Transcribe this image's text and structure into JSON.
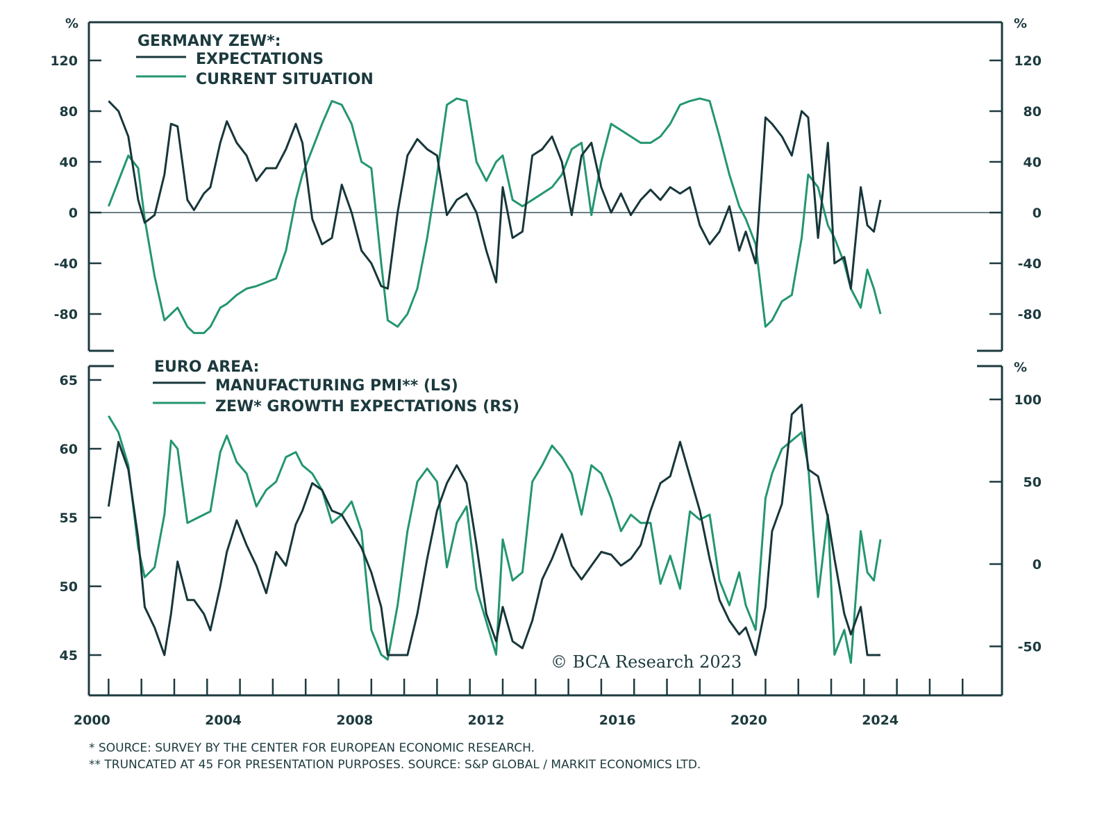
{
  "colors": {
    "dark": "#17363a",
    "green": "#23966f",
    "axis": "#1c3a3e"
  },
  "chart_data": [
    {
      "type": "line",
      "title": "GERMANY ZEW*:",
      "ylabel_left": "%",
      "ylabel_right": "%",
      "ylim": [
        -100,
        140
      ],
      "yticks": [
        -80,
        -40,
        0,
        40,
        80,
        120
      ],
      "ytick_labels": [
        "-80",
        "-40",
        "0",
        "40",
        "80",
        "120"
      ],
      "legend": [
        "EXPECTATIONS",
        "CURRENT SITUATION"
      ],
      "legend_position": "top-left",
      "zero_line": true,
      "series": [
        {
          "name": "EXPECTATIONS",
          "color": "dark",
          "x": [
            2000.0,
            2000.3,
            2000.6,
            2000.9,
            2001.1,
            2001.4,
            2001.7,
            2001.9,
            2002.1,
            2002.4,
            2002.6,
            2002.9,
            2003.1,
            2003.4,
            2003.6,
            2003.9,
            2004.2,
            2004.5,
            2004.8,
            2005.1,
            2005.4,
            2005.7,
            2005.9,
            2006.2,
            2006.5,
            2006.8,
            2007.1,
            2007.4,
            2007.7,
            2008.0,
            2008.3,
            2008.5,
            2008.8,
            2009.1,
            2009.4,
            2009.7,
            2010.0,
            2010.3,
            2010.6,
            2010.9,
            2011.2,
            2011.5,
            2011.8,
            2012.0,
            2012.3,
            2012.6,
            2012.9,
            2013.2,
            2013.5,
            2013.8,
            2014.1,
            2014.4,
            2014.7,
            2015.0,
            2015.3,
            2015.6,
            2015.9,
            2016.2,
            2016.5,
            2016.8,
            2017.1,
            2017.4,
            2017.7,
            2018.0,
            2018.3,
            2018.6,
            2018.9,
            2019.2,
            2019.4,
            2019.7,
            2020.0,
            2020.2,
            2020.5,
            2020.8,
            2021.1,
            2021.3,
            2021.6,
            2021.9,
            2022.1,
            2022.4,
            2022.6,
            2022.9,
            2023.1,
            2023.3,
            2023.5
          ],
          "y": [
            88,
            80,
            60,
            10,
            -8,
            -2,
            30,
            70,
            68,
            10,
            2,
            15,
            20,
            55,
            72,
            55,
            45,
            25,
            35,
            35,
            50,
            70,
            55,
            -5,
            -25,
            -20,
            22,
            0,
            -30,
            -40,
            -58,
            -60,
            0,
            45,
            58,
            50,
            45,
            -2,
            10,
            15,
            0,
            -30,
            -55,
            20,
            -20,
            -15,
            45,
            50,
            60,
            40,
            -2,
            45,
            55,
            20,
            0,
            15,
            -2,
            10,
            18,
            10,
            20,
            15,
            20,
            -10,
            -25,
            -15,
            5,
            -30,
            -15,
            -40,
            75,
            70,
            60,
            45,
            80,
            75,
            -20,
            55,
            -40,
            -35,
            -60,
            20,
            -10,
            -15,
            10
          ]
        },
        {
          "name": "CURRENT SITUATION",
          "color": "green",
          "x": [
            2000.0,
            2000.3,
            2000.6,
            2000.9,
            2001.1,
            2001.4,
            2001.7,
            2001.9,
            2002.1,
            2002.4,
            2002.6,
            2002.9,
            2003.1,
            2003.4,
            2003.6,
            2003.9,
            2004.2,
            2004.5,
            2004.8,
            2005.1,
            2005.4,
            2005.7,
            2005.9,
            2006.2,
            2006.5,
            2006.8,
            2007.1,
            2007.4,
            2007.7,
            2008.0,
            2008.3,
            2008.5,
            2008.8,
            2009.1,
            2009.4,
            2009.7,
            2010.0,
            2010.3,
            2010.6,
            2010.9,
            2011.2,
            2011.5,
            2011.8,
            2012.0,
            2012.3,
            2012.6,
            2012.9,
            2013.2,
            2013.5,
            2013.8,
            2014.1,
            2014.4,
            2014.7,
            2015.0,
            2015.3,
            2015.6,
            2015.9,
            2016.2,
            2016.5,
            2016.8,
            2017.1,
            2017.4,
            2017.7,
            2018.0,
            2018.3,
            2018.6,
            2018.9,
            2019.2,
            2019.4,
            2019.7,
            2020.0,
            2020.2,
            2020.5,
            2020.8,
            2021.1,
            2021.3,
            2021.6,
            2021.9,
            2022.1,
            2022.4,
            2022.6,
            2022.9,
            2023.1,
            2023.3,
            2023.5
          ],
          "y": [
            5,
            25,
            45,
            35,
            -5,
            -50,
            -85,
            -80,
            -75,
            -90,
            -95,
            -95,
            -90,
            -75,
            -72,
            -65,
            -60,
            -58,
            -55,
            -52,
            -30,
            10,
            30,
            50,
            70,
            88,
            85,
            70,
            40,
            35,
            -40,
            -85,
            -90,
            -80,
            -60,
            -20,
            30,
            85,
            90,
            88,
            40,
            25,
            40,
            45,
            10,
            5,
            10,
            15,
            20,
            30,
            50,
            55,
            -2,
            40,
            70,
            65,
            60,
            55,
            55,
            60,
            70,
            85,
            88,
            90,
            88,
            60,
            30,
            5,
            -5,
            -25,
            -90,
            -85,
            -70,
            -65,
            -20,
            30,
            20,
            -10,
            -20,
            -40,
            -60,
            -75,
            -45,
            -60,
            -80
          ]
        }
      ]
    },
    {
      "type": "line",
      "title": "EURO AREA:",
      "ylabel_right": "%",
      "ylim_left": [
        42,
        66
      ],
      "yticks_left": [
        45,
        50,
        55,
        60,
        65
      ],
      "ytick_labels_left": [
        "45",
        "50",
        "55",
        "60",
        "65"
      ],
      "ylim_right": [
        -80,
        120
      ],
      "yticks_right": [
        -50,
        0,
        50,
        100
      ],
      "ytick_labels_right": [
        "-50",
        "0",
        "50",
        "100"
      ],
      "legend": [
        "MANUFACTURING PMI** (LS)",
        "ZEW* GROWTH EXPECTATIONS (RS)"
      ],
      "legend_position": "top-left",
      "series": [
        {
          "name": "MANUFACTURING PMI** (LS)",
          "axis": "left",
          "color": "dark",
          "x": [
            2000.0,
            2000.3,
            2000.6,
            2000.9,
            2001.1,
            2001.4,
            2001.7,
            2001.9,
            2002.1,
            2002.4,
            2002.6,
            2002.9,
            2003.1,
            2003.4,
            2003.6,
            2003.9,
            2004.2,
            2004.5,
            2004.8,
            2005.1,
            2005.4,
            2005.7,
            2005.9,
            2006.2,
            2006.5,
            2006.8,
            2007.1,
            2007.4,
            2007.7,
            2008.0,
            2008.3,
            2008.5,
            2008.8,
            2009.1,
            2009.4,
            2009.7,
            2010.0,
            2010.3,
            2010.6,
            2010.9,
            2011.2,
            2011.5,
            2011.8,
            2012.0,
            2012.3,
            2012.6,
            2012.9,
            2013.2,
            2013.5,
            2013.8,
            2014.1,
            2014.4,
            2014.7,
            2015.0,
            2015.3,
            2015.6,
            2015.9,
            2016.2,
            2016.5,
            2016.8,
            2017.1,
            2017.4,
            2017.7,
            2018.0,
            2018.3,
            2018.6,
            2018.9,
            2019.2,
            2019.4,
            2019.7,
            2020.0,
            2020.2,
            2020.5,
            2020.8,
            2021.1,
            2021.3,
            2021.6,
            2021.9,
            2022.1,
            2022.4,
            2022.6,
            2022.9,
            2023.1,
            2023.3,
            2023.5
          ],
          "y": [
            55.8,
            60.5,
            58.5,
            53.5,
            48.5,
            47,
            45,
            48,
            51.8,
            49,
            49,
            48,
            46.8,
            50,
            52.5,
            54.8,
            53,
            51.5,
            49.5,
            52.5,
            51.5,
            54.5,
            55.5,
            57.5,
            57,
            55.5,
            55.2,
            54,
            52.8,
            51,
            48.5,
            45,
            45,
            45,
            48,
            52,
            55.5,
            57.5,
            58.8,
            57.5,
            53,
            48,
            46,
            48.5,
            46,
            45.5,
            47.5,
            50.5,
            52,
            53.8,
            51.5,
            50.5,
            51.5,
            52.5,
            52.3,
            51.5,
            52,
            53,
            55.5,
            57.5,
            58,
            60.5,
            58,
            55.5,
            52,
            49,
            47.5,
            46.5,
            47,
            45,
            48.5,
            54,
            56,
            62.5,
            63.2,
            58.5,
            58,
            55,
            52,
            48,
            46.5,
            48.5,
            45,
            45,
            45
          ]
        },
        {
          "name": "ZEW* GROWTH EXPECTATIONS (RS)",
          "axis": "right",
          "color": "green",
          "x": [
            2000.0,
            2000.3,
            2000.6,
            2000.9,
            2001.1,
            2001.4,
            2001.7,
            2001.9,
            2002.1,
            2002.4,
            2002.6,
            2002.9,
            2003.1,
            2003.4,
            2003.6,
            2003.9,
            2004.2,
            2004.5,
            2004.8,
            2005.1,
            2005.4,
            2005.7,
            2005.9,
            2006.2,
            2006.5,
            2006.8,
            2007.1,
            2007.4,
            2007.7,
            2008.0,
            2008.3,
            2008.5,
            2008.8,
            2009.1,
            2009.4,
            2009.7,
            2010.0,
            2010.3,
            2010.6,
            2010.9,
            2011.2,
            2011.5,
            2011.8,
            2012.0,
            2012.3,
            2012.6,
            2012.9,
            2013.2,
            2013.5,
            2013.8,
            2014.1,
            2014.4,
            2014.7,
            2015.0,
            2015.3,
            2015.6,
            2015.9,
            2016.2,
            2016.5,
            2016.8,
            2017.1,
            2017.4,
            2017.7,
            2018.0,
            2018.3,
            2018.6,
            2018.9,
            2019.2,
            2019.4,
            2019.7,
            2020.0,
            2020.2,
            2020.5,
            2020.8,
            2021.1,
            2021.3,
            2021.6,
            2021.9,
            2022.1,
            2022.4,
            2022.6,
            2022.9,
            2023.1,
            2023.3,
            2023.5
          ],
          "y": [
            90,
            80,
            60,
            10,
            -8,
            -2,
            30,
            75,
            70,
            25,
            27,
            30,
            32,
            68,
            78,
            62,
            55,
            35,
            45,
            50,
            65,
            68,
            60,
            55,
            45,
            25,
            30,
            38,
            20,
            -40,
            -55,
            -58,
            -25,
            20,
            50,
            58,
            50,
            -2,
            25,
            35,
            -15,
            -35,
            -55,
            15,
            -10,
            -5,
            50,
            60,
            72,
            65,
            55,
            30,
            60,
            55,
            40,
            20,
            30,
            25,
            25,
            -12,
            5,
            -15,
            32,
            27,
            30,
            -10,
            -25,
            -5,
            -25,
            -40,
            40,
            55,
            70,
            75,
            80,
            60,
            -20,
            30,
            -55,
            -40,
            -60,
            20,
            -5,
            -10,
            15
          ]
        }
      ]
    }
  ],
  "x_axis": {
    "xlim": [
      1999.4,
      2027.2
    ],
    "tick_years": [
      2000,
      2001,
      2002,
      2003,
      2004,
      2005,
      2006,
      2007,
      2008,
      2009,
      2010,
      2011,
      2012,
      2013,
      2014,
      2015,
      2016,
      2017,
      2018,
      2019,
      2020,
      2021,
      2022,
      2023,
      2024,
      2025,
      2026
    ],
    "labels": [
      "2000",
      "2004",
      "2008",
      "2012",
      "2016",
      "2020",
      "2024"
    ],
    "label_years": [
      2000,
      2004,
      2008,
      2012,
      2016,
      2020,
      2024
    ]
  },
  "top": {
    "title": "GERMANY ZEW*:",
    "legend_1": "EXPECTATIONS",
    "legend_2": "CURRENT SITUATION",
    "unit_left": "%",
    "unit_right": "%"
  },
  "bottom": {
    "title": "EURO AREA:",
    "legend_1": "MANUFACTURING PMI** (LS)",
    "legend_2": "ZEW* GROWTH EXPECTATIONS (RS)",
    "unit_right": "%"
  },
  "credit": "© BCA Research 2023",
  "footnotes": [
    "*  SOURCE: SURVEY BY THE CENTER FOR EUROPEAN ECONOMIC RESEARCH.",
    "** TRUNCATED AT 45 FOR PRESENTATION PURPOSES. SOURCE: S&P GLOBAL / MARKIT ECONOMICS LTD."
  ]
}
